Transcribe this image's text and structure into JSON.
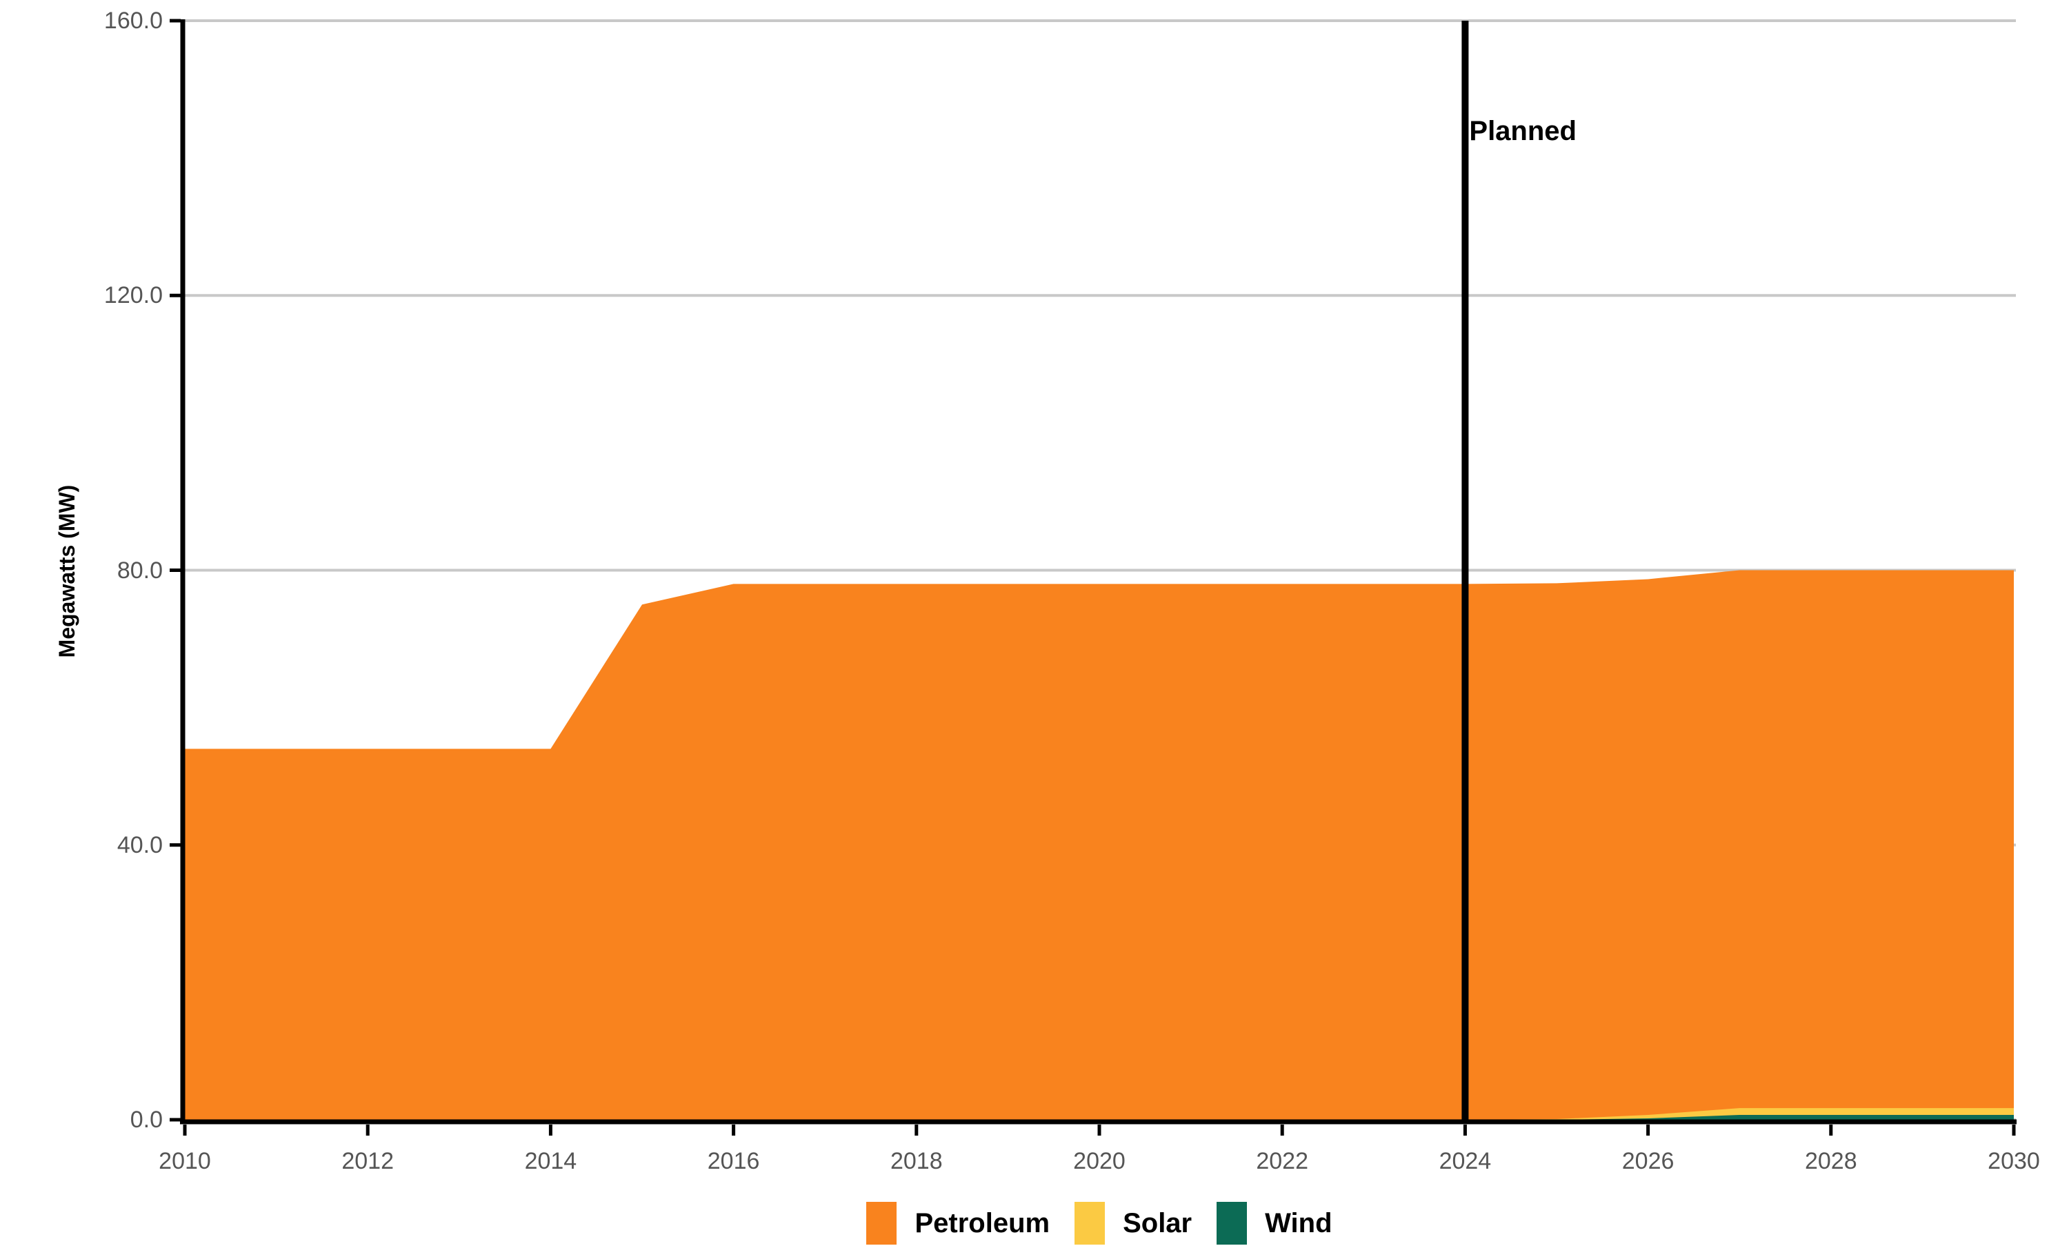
{
  "chart_data": {
    "type": "area",
    "stacked": true,
    "title": "",
    "xlabel": "",
    "ylabel": "Megawatts (MW)",
    "x": [
      2010,
      2011,
      2012,
      2013,
      2014,
      2015,
      2016,
      2017,
      2018,
      2019,
      2020,
      2021,
      2022,
      2023,
      2024,
      2025,
      2026,
      2027,
      2028,
      2029,
      2030
    ],
    "series": [
      {
        "name": "Petroleum",
        "color": "#F9831E",
        "values": [
          54,
          54,
          54,
          54,
          54,
          75,
          78,
          78,
          78,
          78,
          78,
          78,
          78,
          78,
          78,
          78,
          78,
          78.3,
          78.3,
          78.3,
          78.3
        ]
      },
      {
        "name": "Solar",
        "color": "#FBCA43",
        "values": [
          0,
          0,
          0,
          0,
          0,
          0,
          0,
          0,
          0,
          0,
          0,
          0,
          0,
          0,
          0,
          0.1,
          0.5,
          1,
          1,
          1,
          1
        ]
      },
      {
        "name": "Wind",
        "color": "#0C6B55",
        "values": [
          0,
          0,
          0,
          0,
          0,
          0,
          0,
          0,
          0,
          0,
          0,
          0,
          0,
          0,
          0,
          0,
          0.2,
          0.7,
          0.7,
          0.7,
          0.7
        ]
      }
    ],
    "stack_order_bottom_to_top": [
      "Wind",
      "Solar",
      "Petroleum"
    ],
    "xlim": [
      2010,
      2030
    ],
    "ylim": [
      0,
      160
    ],
    "x_tick_values": [
      2010,
      2012,
      2014,
      2016,
      2018,
      2020,
      2022,
      2024,
      2026,
      2028,
      2030
    ],
    "x_tick_labels": [
      "2010",
      "2012",
      "2014",
      "2016",
      "2018",
      "2020",
      "2022",
      "2024",
      "2026",
      "2028",
      "2030"
    ],
    "y_tick_values": [
      0,
      40,
      80,
      120,
      160
    ],
    "y_tick_labels": [
      "0.0",
      "40.0",
      "80.0",
      "120.0",
      "160.0"
    ],
    "grid": "horizontal-major",
    "legend_position": "bottom",
    "annotation": {
      "type": "vline",
      "x": 2024,
      "label": "Planned"
    }
  },
  "legend": {
    "items": [
      {
        "label": "Petroleum",
        "color": "#F9831E"
      },
      {
        "label": "Solar",
        "color": "#FBCA43"
      },
      {
        "label": "Wind",
        "color": "#0C6B55"
      }
    ]
  },
  "colors": {
    "background": "#FFFFFF",
    "gridline": "#C8C8C8",
    "axis": "#000000",
    "tick_label": "#555555",
    "annotation_line": "#000000"
  }
}
